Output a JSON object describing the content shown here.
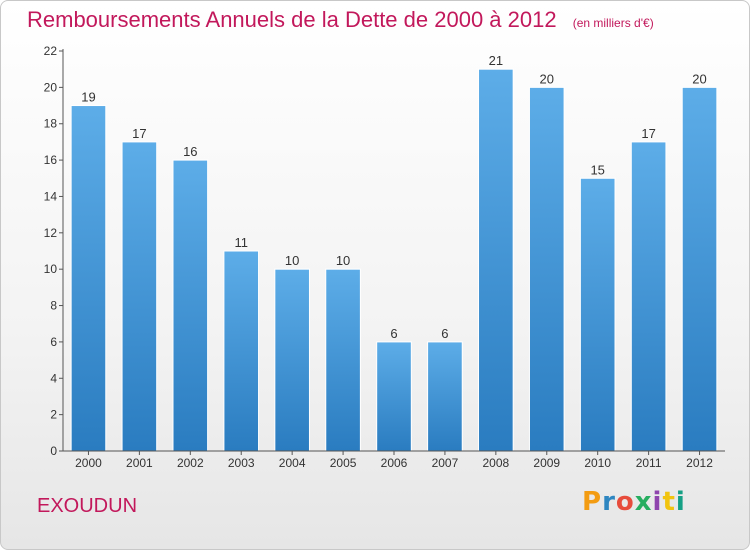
{
  "header": {
    "title": "Remboursements Annuels de la Dette de 2000 à 2012",
    "unit": "(en milliers d'€)"
  },
  "footer": {
    "place": "EXOUDUN",
    "logo_letters": [
      "P",
      "r",
      "o",
      "x",
      "i",
      "t",
      "i"
    ],
    "logo_colors": [
      "#f39c12",
      "#2e86c1",
      "#e74c3c",
      "#27ae60",
      "#8e44ad",
      "#f1c40f",
      "#16a085"
    ]
  },
  "colors": {
    "title": "#c2185b",
    "bar_top": "#5dade8",
    "bar_bottom": "#2a7cc0",
    "axis": "#555555",
    "grid": "#cccccc"
  },
  "chart_data": {
    "type": "bar",
    "title": "Remboursements Annuels de la Dette de 2000 à 2012",
    "xlabel": "",
    "ylabel": "",
    "categories": [
      "2000",
      "2001",
      "2002",
      "2003",
      "2004",
      "2005",
      "2006",
      "2007",
      "2008",
      "2009",
      "2010",
      "2011",
      "2012"
    ],
    "values": [
      19,
      17,
      16,
      11,
      10,
      10,
      6,
      6,
      21,
      20,
      15,
      17,
      20
    ],
    "ylim": [
      0,
      22
    ],
    "yticks": [
      0,
      2,
      4,
      6,
      8,
      10,
      12,
      14,
      16,
      18,
      20,
      22
    ],
    "grid": false,
    "legend": "none"
  }
}
